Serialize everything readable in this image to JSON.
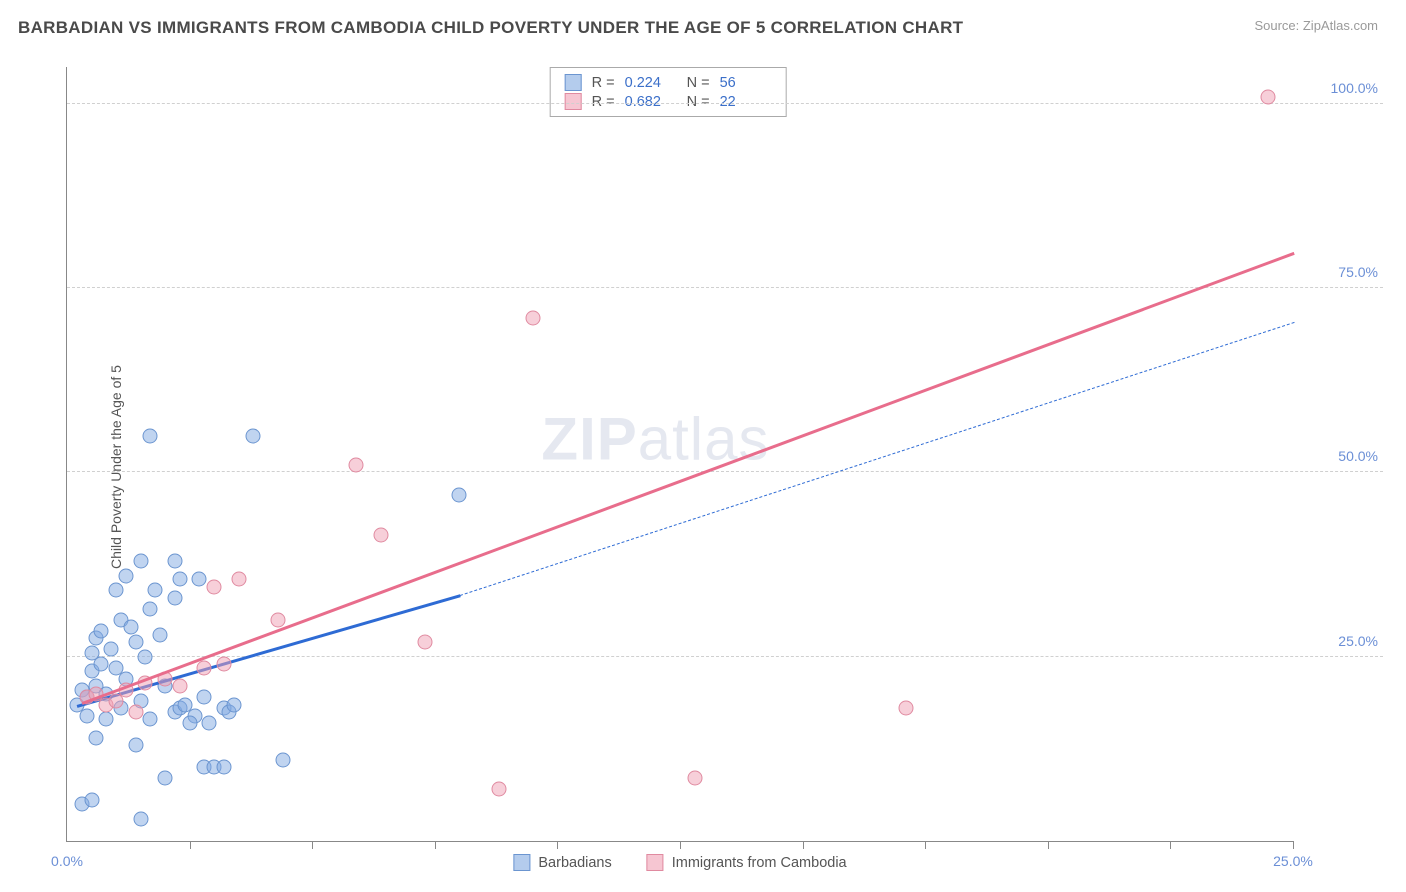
{
  "title": "BARBADIAN VS IMMIGRANTS FROM CAMBODIA CHILD POVERTY UNDER THE AGE OF 5 CORRELATION CHART",
  "source": "Source: ZipAtlas.com",
  "yaxis_label": "Child Poverty Under the Age of 5",
  "watermark_bold": "ZIP",
  "watermark_light": "atlas",
  "chart": {
    "type": "scatter",
    "xlim": [
      0,
      25
    ],
    "ylim": [
      0,
      105
    ],
    "yticks": [
      25,
      50,
      75,
      100
    ],
    "ytick_labels": [
      "25.0%",
      "50.0%",
      "75.0%",
      "100.0%"
    ],
    "xticks_minor": [
      2.5,
      5,
      7.5,
      10,
      12.5,
      15,
      17.5,
      20,
      22.5,
      25
    ],
    "xtick_positions": [
      0,
      25
    ],
    "xtick_labels": [
      "0.0%",
      "25.0%"
    ],
    "grid_color": "#d0d0d0",
    "background_color": "#ffffff",
    "axis_color": "#888888",
    "marker_size": 15,
    "series": [
      {
        "name": "Barbadians",
        "color_fill": "rgba(130,170,225,0.5)",
        "color_stroke": "#6b95d0",
        "line_color": "#2e6bd4",
        "r": "0.224",
        "n": "56",
        "points": [
          [
            0.2,
            18.5
          ],
          [
            0.3,
            20.5
          ],
          [
            0.4,
            19.5
          ],
          [
            0.5,
            23
          ],
          [
            0.4,
            17
          ],
          [
            0.6,
            21
          ],
          [
            0.5,
            25.5
          ],
          [
            0.7,
            24
          ],
          [
            0.6,
            27.5
          ],
          [
            0.8,
            20
          ],
          [
            0.9,
            26
          ],
          [
            1.0,
            23.5
          ],
          [
            0.7,
            28.5
          ],
          [
            0.8,
            16.5
          ],
          [
            1.1,
            30
          ],
          [
            1.2,
            22
          ],
          [
            1.4,
            27
          ],
          [
            1.3,
            29
          ],
          [
            1.5,
            19
          ],
          [
            1.7,
            31.5
          ],
          [
            1.6,
            25
          ],
          [
            1.9,
            28
          ],
          [
            1.8,
            34
          ],
          [
            2.0,
            21
          ],
          [
            2.2,
            17.5
          ],
          [
            2.3,
            18
          ],
          [
            2.4,
            18.5
          ],
          [
            2.6,
            17
          ],
          [
            2.8,
            19.5
          ],
          [
            3.2,
            18
          ],
          [
            3.3,
            17.5
          ],
          [
            3.4,
            18.5
          ],
          [
            0.3,
            5
          ],
          [
            0.5,
            5.5
          ],
          [
            1.5,
            3
          ],
          [
            1.4,
            13
          ],
          [
            2.0,
            8.5
          ],
          [
            2.8,
            10
          ],
          [
            3.0,
            10
          ],
          [
            3.2,
            10
          ],
          [
            4.4,
            11
          ],
          [
            1.2,
            36
          ],
          [
            1.5,
            38
          ],
          [
            1.0,
            34
          ],
          [
            2.2,
            33
          ],
          [
            2.3,
            35.5
          ],
          [
            2.7,
            35.5
          ],
          [
            1.7,
            55
          ],
          [
            3.8,
            55
          ],
          [
            2.2,
            38
          ],
          [
            8.0,
            47
          ],
          [
            0.6,
            14
          ],
          [
            1.1,
            18
          ],
          [
            1.7,
            16.5
          ],
          [
            2.5,
            16
          ],
          [
            2.9,
            16
          ]
        ],
        "regression_solid": {
          "x1": 0.2,
          "y1": 18.5,
          "x2": 8.0,
          "y2": 33.5
        },
        "regression_dashed": {
          "x1": 8.0,
          "y1": 33.5,
          "x2": 25.0,
          "y2": 70.5
        }
      },
      {
        "name": "Immigrants from Cambodia",
        "color_fill": "rgba(240,160,180,0.5)",
        "color_stroke": "#e08aa0",
        "line_color": "#e86d8c",
        "r": "0.682",
        "n": "22",
        "points": [
          [
            0.4,
            19.5
          ],
          [
            0.6,
            20
          ],
          [
            0.8,
            18.5
          ],
          [
            1.0,
            19
          ],
          [
            1.2,
            20.5
          ],
          [
            1.4,
            17.5
          ],
          [
            1.6,
            21.5
          ],
          [
            2.0,
            22
          ],
          [
            2.3,
            21
          ],
          [
            2.8,
            23.5
          ],
          [
            3.2,
            24
          ],
          [
            3.0,
            34.5
          ],
          [
            3.5,
            35.5
          ],
          [
            4.3,
            30
          ],
          [
            6.4,
            41.5
          ],
          [
            5.9,
            51
          ],
          [
            7.3,
            27
          ],
          [
            9.5,
            71
          ],
          [
            8.8,
            7
          ],
          [
            12.8,
            8.5
          ],
          [
            17.1,
            18
          ],
          [
            24.5,
            101
          ]
        ],
        "regression_solid": {
          "x1": 0.3,
          "y1": 19,
          "x2": 25.0,
          "y2": 80
        }
      }
    ]
  },
  "stats_box": {
    "rows": [
      {
        "swatch": "blue",
        "r_label": "R =",
        "r_val": "0.224",
        "n_label": "N =",
        "n_val": "56"
      },
      {
        "swatch": "pink",
        "r_label": "R =",
        "r_val": "0.682",
        "n_label": "N =",
        "n_val": "22"
      }
    ]
  },
  "bottom_legend": [
    {
      "swatch": "blue",
      "label": "Barbadians"
    },
    {
      "swatch": "pink",
      "label": "Immigrants from Cambodia"
    }
  ]
}
